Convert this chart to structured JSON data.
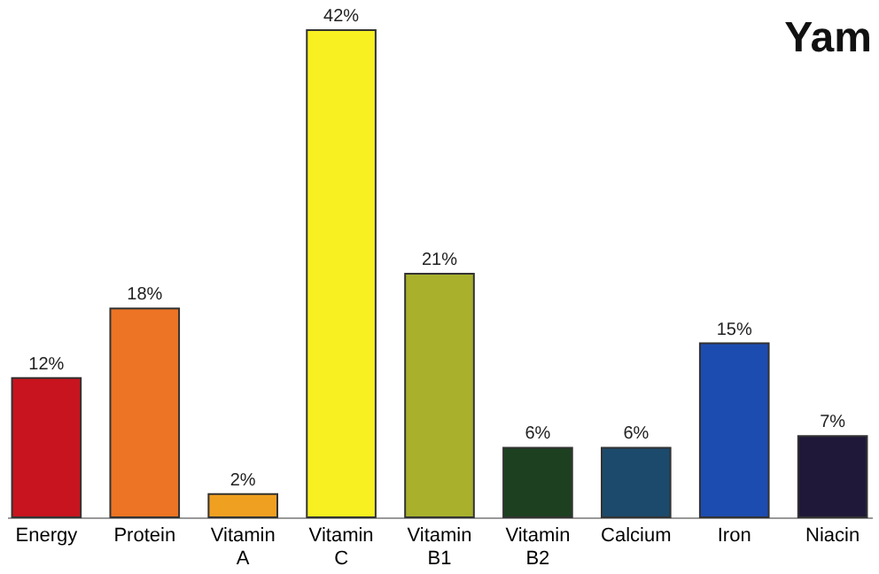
{
  "chart_data": {
    "type": "bar",
    "title": "Yam",
    "categories": [
      "Energy",
      "Protein",
      "Vitamin A",
      "Vitamin C",
      "Vitamin B1",
      "Vitamin B2",
      "Calcium",
      "Iron",
      "Niacin"
    ],
    "values": [
      12,
      18,
      2,
      42,
      21,
      6,
      6,
      15,
      7
    ],
    "value_labels": [
      "12%",
      "18%",
      "2%",
      "42%",
      "21%",
      "6%",
      "6%",
      "15%",
      "7%"
    ],
    "colors": [
      "#c8141e",
      "#ec7424",
      "#f0a020",
      "#f8f020",
      "#a8b02c",
      "#1c4020",
      "#1c4a6c",
      "#1c4cb0",
      "#201838"
    ],
    "grid": false,
    "legend": false
  }
}
